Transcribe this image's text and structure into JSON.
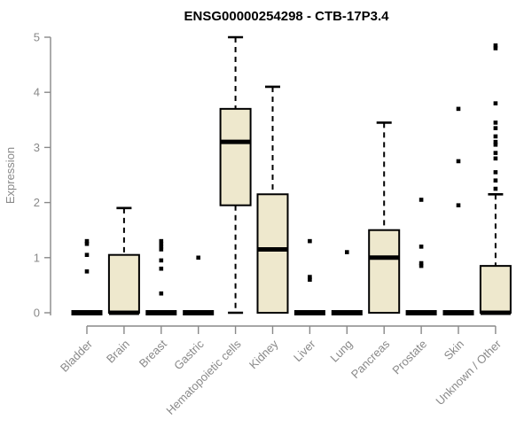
{
  "page": {
    "background": "#ffffff"
  },
  "chart_data": {
    "type": "boxplot",
    "title": "ENSG00000254298 - CTB-17P3.4",
    "xlabel": "",
    "ylabel": "Expression",
    "ylim": [
      0,
      5
    ],
    "yticks": [
      0,
      1,
      2,
      3,
      4,
      5
    ],
    "grid": false,
    "legend": null,
    "categories": [
      "Bladder",
      "Brain",
      "Breast",
      "Gastric",
      "Hematopoietic cells",
      "Kidney",
      "Liver",
      "Lung",
      "Pancreas",
      "Prostate",
      "Skin",
      "Unknown / Other"
    ],
    "boxes": [
      {
        "label": "Bladder",
        "q1": 0,
        "median": 0,
        "q3": 0,
        "whisker_low": 0,
        "whisker_high": 0,
        "outliers": [
          1.3,
          1.25,
          1.05,
          0.75
        ]
      },
      {
        "label": "Brain",
        "q1": 0,
        "median": 0,
        "q3": 1.05,
        "whisker_low": 0,
        "whisker_high": 1.9,
        "outliers": []
      },
      {
        "label": "Breast",
        "q1": 0,
        "median": 0,
        "q3": 0,
        "whisker_low": 0,
        "whisker_high": 0,
        "outliers": [
          1.3,
          1.25,
          1.2,
          1.15,
          0.95,
          0.8,
          0.35
        ]
      },
      {
        "label": "Gastric",
        "q1": 0,
        "median": 0,
        "q3": 0,
        "whisker_low": 0,
        "whisker_high": 0,
        "outliers": [
          1.0
        ]
      },
      {
        "label": "Hematopoietic cells",
        "q1": 1.95,
        "median": 3.1,
        "q3": 3.7,
        "whisker_low": 0,
        "whisker_high": 5.0,
        "outliers": []
      },
      {
        "label": "Kidney",
        "q1": 0,
        "median": 1.15,
        "q3": 2.15,
        "whisker_low": 0,
        "whisker_high": 4.1,
        "outliers": []
      },
      {
        "label": "Liver",
        "q1": 0,
        "median": 0,
        "q3": 0,
        "whisker_low": 0,
        "whisker_high": 0,
        "outliers": [
          1.3,
          0.65,
          0.6
        ]
      },
      {
        "label": "Lung",
        "q1": 0,
        "median": 0,
        "q3": 0,
        "whisker_low": 0,
        "whisker_high": 0,
        "outliers": [
          1.1
        ]
      },
      {
        "label": "Pancreas",
        "q1": 0,
        "median": 1.0,
        "q3": 1.5,
        "whisker_low": 0,
        "whisker_high": 3.45,
        "outliers": []
      },
      {
        "label": "Prostate",
        "q1": 0,
        "median": 0,
        "q3": 0,
        "whisker_low": 0,
        "whisker_high": 0,
        "outliers": [
          2.05,
          1.2,
          0.9,
          0.85
        ]
      },
      {
        "label": "Skin",
        "q1": 0,
        "median": 0,
        "q3": 0,
        "whisker_low": 0,
        "whisker_high": 0,
        "outliers": [
          3.7,
          2.75,
          1.95
        ]
      },
      {
        "label": "Unknown / Other",
        "q1": 0,
        "median": 0,
        "q3": 0.85,
        "whisker_low": 0,
        "whisker_high": 2.15,
        "outliers": [
          4.85,
          4.8,
          3.8,
          3.45,
          3.35,
          3.2,
          3.1,
          3.05,
          2.9,
          2.8,
          2.55,
          2.4,
          2.25
        ]
      }
    ],
    "colors": {
      "box_fill": "#EEE8CD",
      "box_stroke": "#000000",
      "median": "#000000",
      "outlier": "#000000",
      "axis": "#898989",
      "tick_label": "#898989",
      "title": "#000000"
    }
  }
}
